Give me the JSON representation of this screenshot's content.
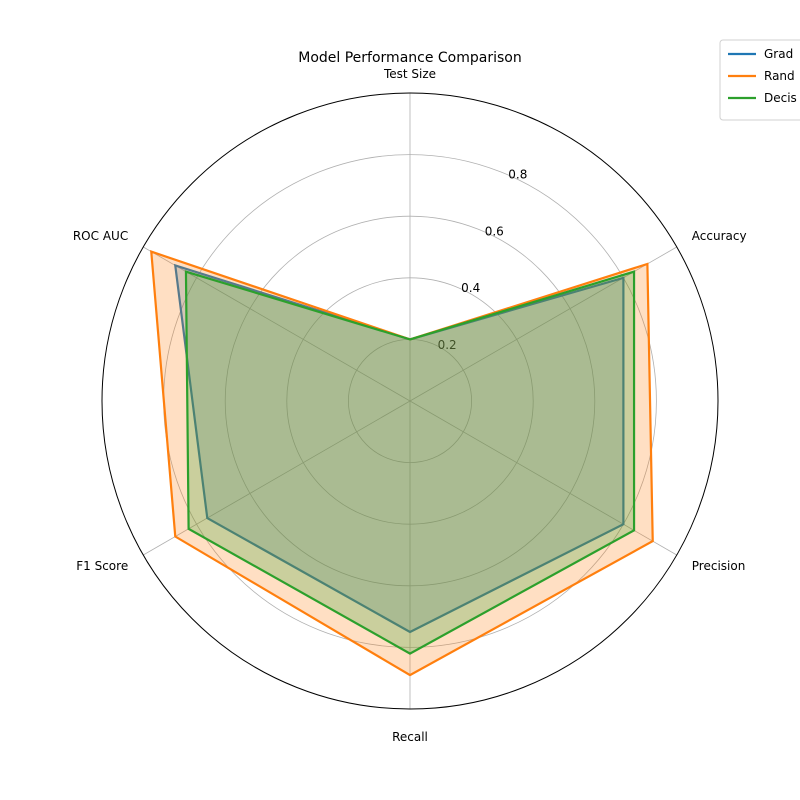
{
  "chart_data": {
    "type": "radar",
    "title": "Model Performance Comparison",
    "axes": [
      "Test Size",
      "Accuracy",
      "Precision",
      "Recall",
      "F1 Score",
      "ROC AUC"
    ],
    "r_ticks": [
      0.2,
      0.4,
      0.6,
      0.8
    ],
    "rlim": [
      0,
      1.0
    ],
    "grid": true,
    "legend_position": "top-right",
    "series": [
      {
        "name": "Grad",
        "color": "#1f77b4",
        "values": [
          0.2,
          0.8,
          0.8,
          0.75,
          0.76,
          0.88
        ],
        "filled": true
      },
      {
        "name": "Rand",
        "color": "#ff7f0e",
        "values": [
          0.2,
          0.89,
          0.91,
          0.89,
          0.88,
          0.97
        ],
        "filled": true
      },
      {
        "name": "Decis",
        "color": "#2ca02c",
        "values": [
          0.2,
          0.84,
          0.84,
          0.82,
          0.83,
          0.84
        ],
        "filled": true
      }
    ]
  }
}
